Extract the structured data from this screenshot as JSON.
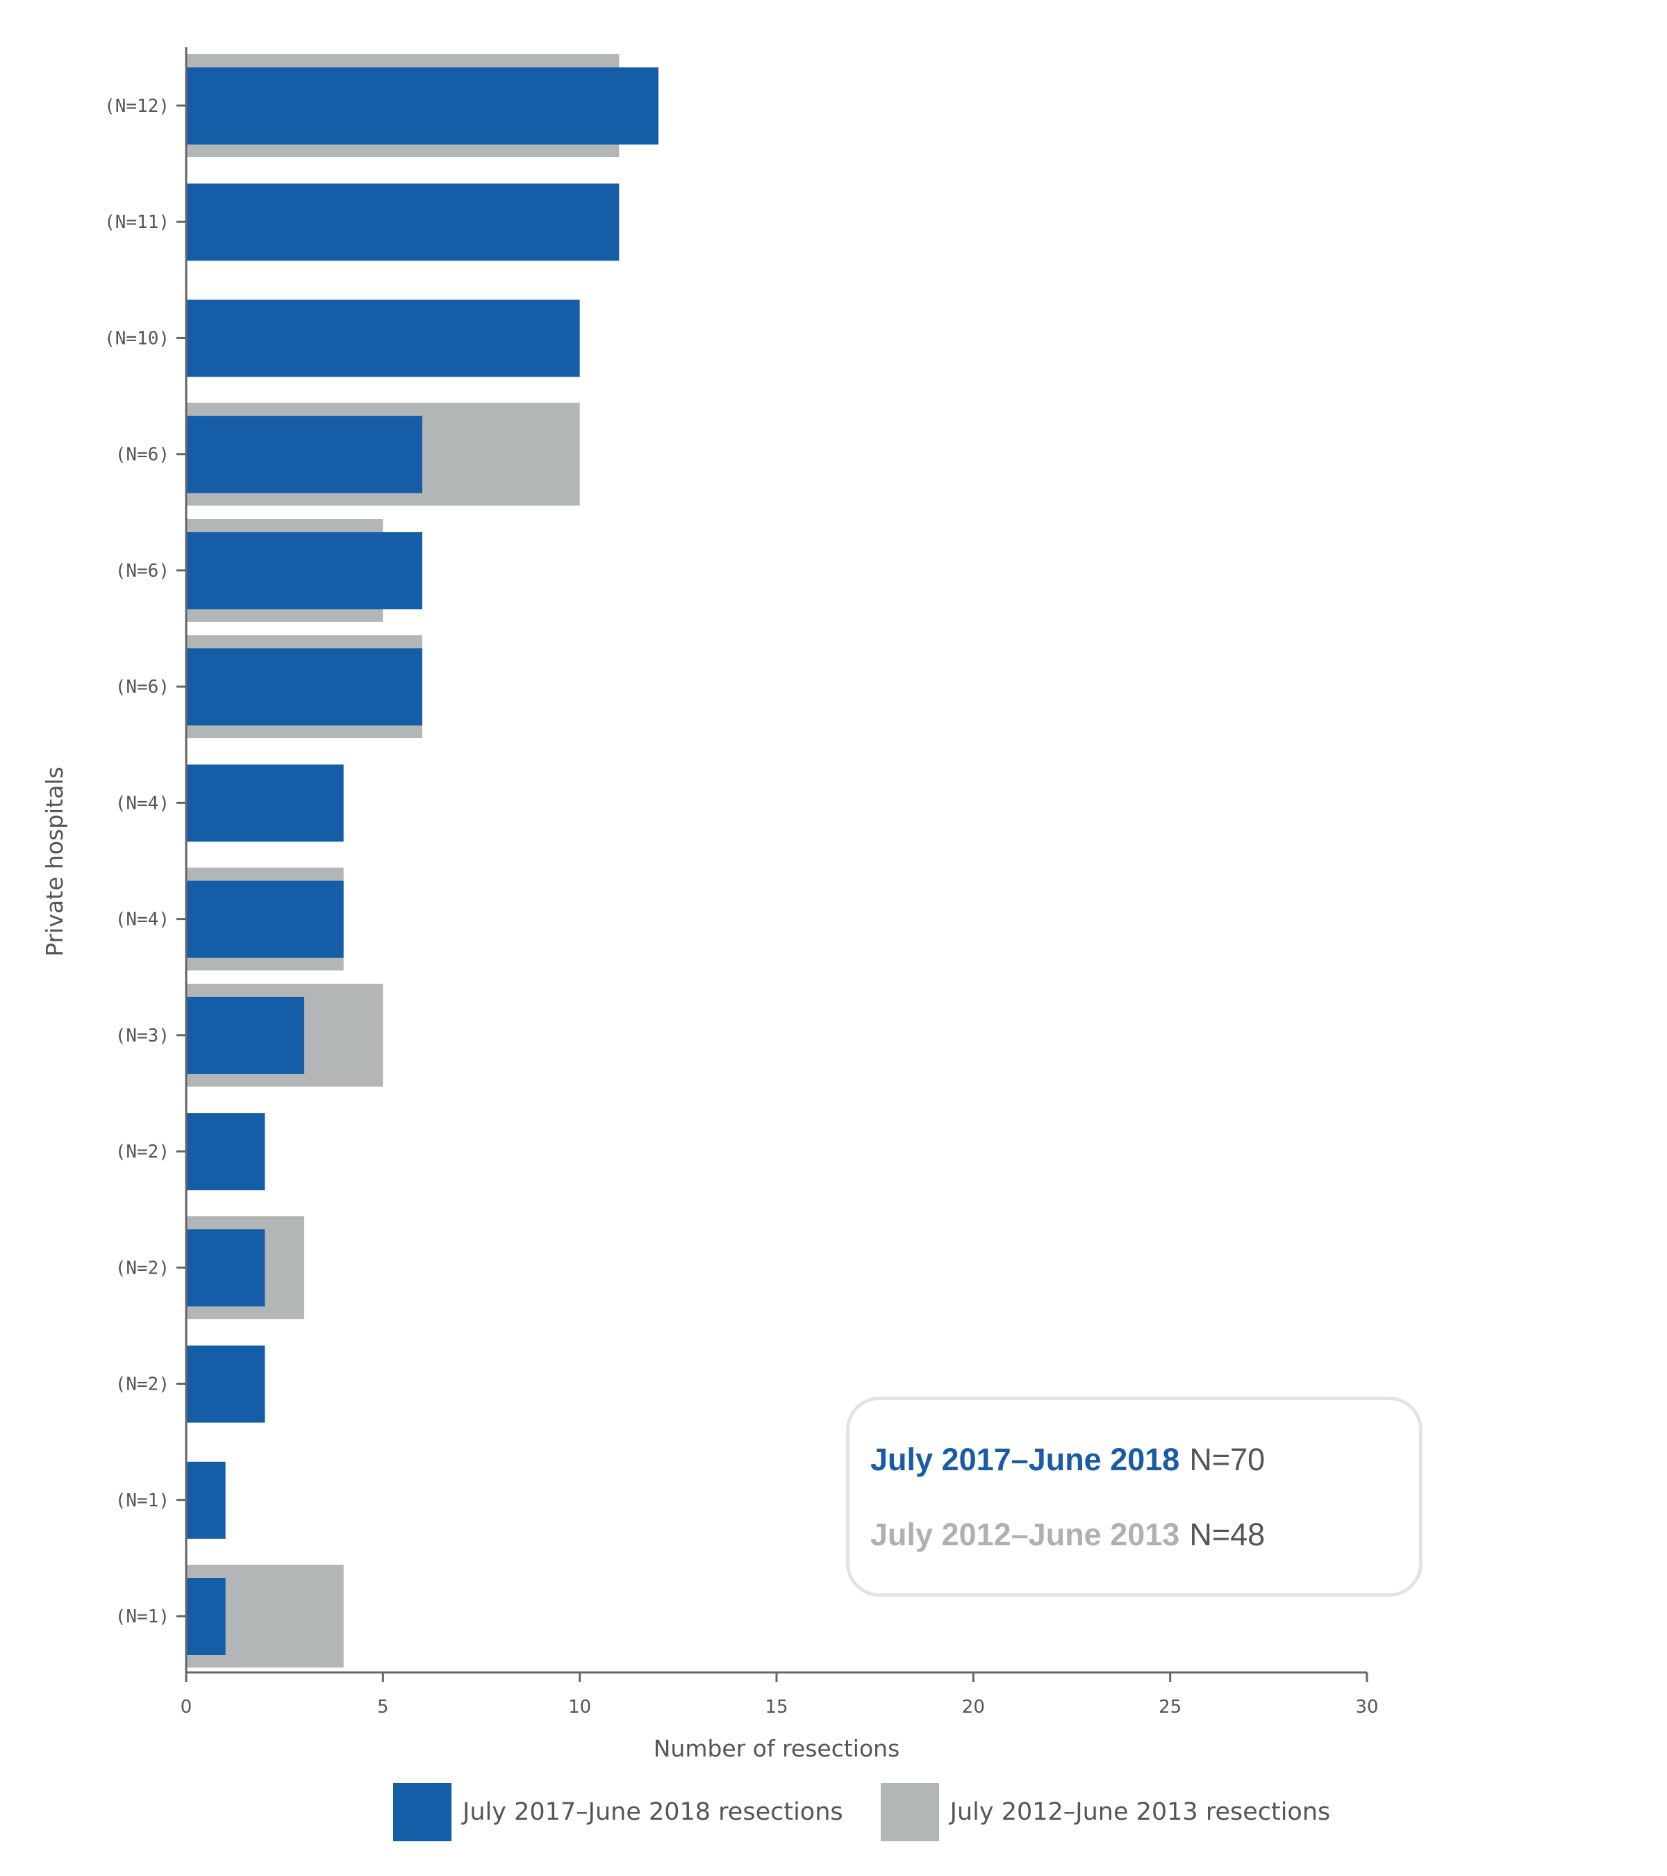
{
  "chart_data": {
    "type": "bar",
    "orientation": "horizontal",
    "categories": [
      "(N=12)",
      "(N=11)",
      "(N=10)",
      "(N=6)",
      "(N=6)",
      "(N=6)",
      "(N=4)",
      "(N=4)",
      "(N=3)",
      "(N=2)",
      "(N=2)",
      "(N=2)",
      "(N=1)",
      "(N=1)"
    ],
    "series": [
      {
        "name": "July 2017–June 2018 resections",
        "color": "#165DA8",
        "values": [
          12,
          11,
          10,
          6,
          6,
          6,
          4,
          4,
          3,
          2,
          2,
          2,
          1,
          1
        ]
      },
      {
        "name": "July 2012–June 2013 resections",
        "color": "#B3B6B6",
        "values": [
          11,
          0,
          0,
          10,
          5,
          6,
          0,
          4,
          5,
          0,
          3,
          0,
          0,
          4
        ]
      }
    ],
    "xlabel": "Number of resections",
    "ylabel": "Private hospitals",
    "xlim": [
      0,
      30
    ],
    "xticks": [
      "0",
      "5",
      "10",
      "15",
      "20",
      "25",
      "30"
    ],
    "grid": false,
    "legend_placement": "bottom"
  },
  "summary_box": {
    "line1": {
      "period": "July 2017–June 2018",
      "n": "N=70",
      "color": "#1A5BA6"
    },
    "line2": {
      "period": "July 2012–June 2013",
      "n": "N=48",
      "color": "#B0B0B0"
    }
  }
}
